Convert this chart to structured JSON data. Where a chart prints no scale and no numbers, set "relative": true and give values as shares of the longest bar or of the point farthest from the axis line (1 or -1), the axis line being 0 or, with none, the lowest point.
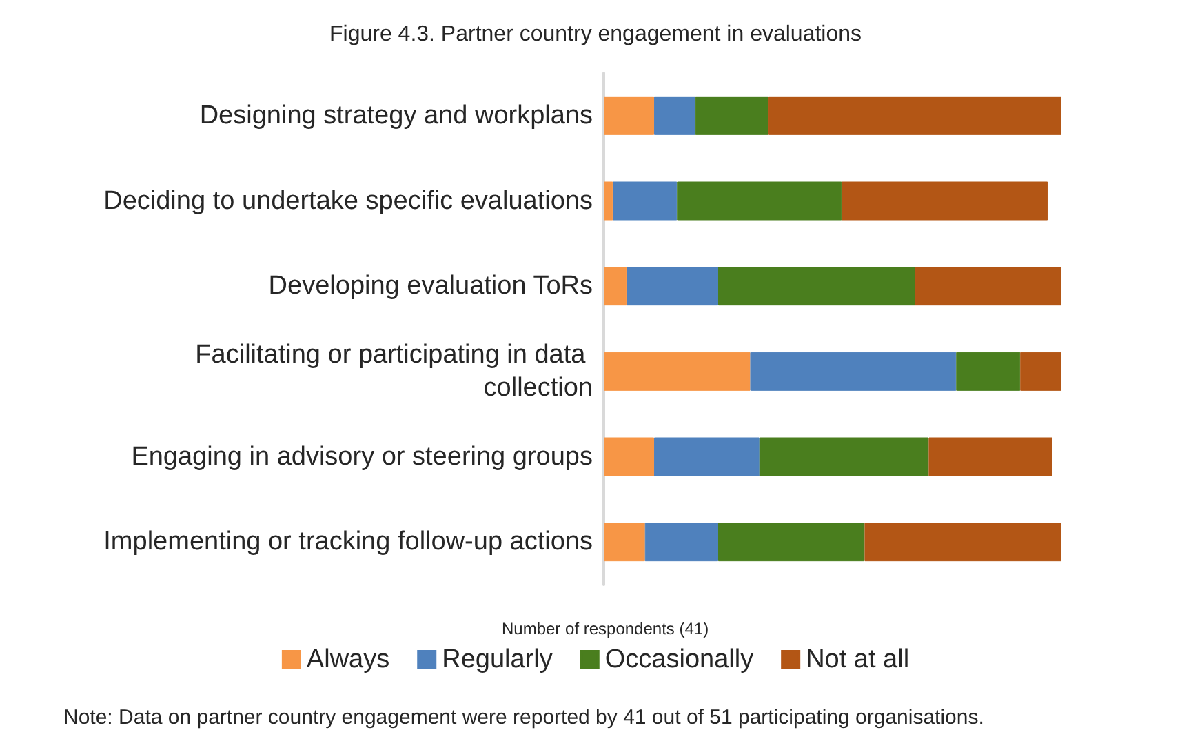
{
  "chart_data": {
    "type": "bar",
    "orientation": "horizontal",
    "stacked": true,
    "relative": true,
    "title": "Figure 4.3. Partner country engagement in evaluations",
    "xlabel": "Number of respondents (41)",
    "categories": [
      "Designing strategy and workplans",
      "Deciding to undertake specific evaluations",
      "Developing evaluation ToRs",
      "Facilitating or participating in data collection",
      "Engaging in advisory or steering groups",
      "Implementing or tracking follow-up actions"
    ],
    "series": [
      {
        "name": "Always",
        "color": "#f79646",
        "values": [
          0.11,
          0.02,
          0.05,
          0.32,
          0.11,
          0.09
        ]
      },
      {
        "name": "Regularly",
        "color": "#4f81bd",
        "values": [
          0.09,
          0.14,
          0.2,
          0.45,
          0.23,
          0.16
        ]
      },
      {
        "name": "Occasionally",
        "color": "#4a7e1e",
        "values": [
          0.16,
          0.36,
          0.43,
          0.14,
          0.37,
          0.32
        ]
      },
      {
        "name": "Not at all",
        "color": "#b35615",
        "values": [
          0.64,
          0.45,
          0.32,
          0.09,
          0.27,
          0.43
        ]
      }
    ],
    "legend": "bottom",
    "annotations": [
      "Note: Data on partner country engagement were reported by 41 out of 51 participating organisations."
    ]
  }
}
